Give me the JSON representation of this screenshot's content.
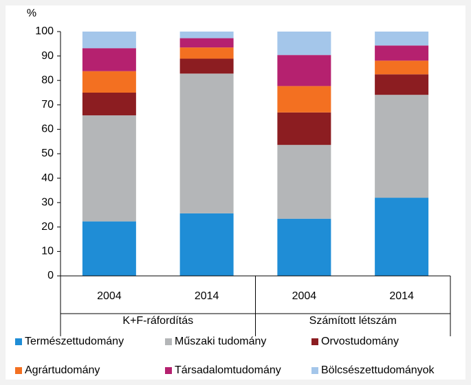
{
  "chart_data": {
    "type": "stacked_bar",
    "y_unit": "%",
    "categories": [
      "2004",
      "2014",
      "2004",
      "2014"
    ],
    "groups": [
      "K+F-ráfordítás",
      "Számított létszám"
    ],
    "series": [
      {
        "name": "Természettudomány",
        "color": "#1f8dd6",
        "values": [
          22.3,
          25.6,
          23.4,
          32
        ]
      },
      {
        "name": "Műszaki tudomány",
        "color": "#b4b6b8",
        "values": [
          43.4,
          57.2,
          30.2,
          42.1
        ]
      },
      {
        "name": "Orvostudomány",
        "color": "#8c1d21",
        "values": [
          9.3,
          6.1,
          13.3,
          8.4
        ]
      },
      {
        "name": "Agrártudomány",
        "color": "#f37021",
        "values": [
          8.8,
          4.6,
          10.8,
          5.6
        ]
      },
      {
        "name": "Társadalomtudomány",
        "color": "#b5216f",
        "values": [
          9.4,
          3.8,
          12.7,
          6.2
        ]
      },
      {
        "name": "Bölcsészettudományok",
        "color": "#a4c6ea",
        "values": [
          6.8,
          2.7,
          9.6,
          5.7
        ]
      }
    ],
    "ylim": [
      0,
      100
    ],
    "yticks": [
      0,
      10,
      20,
      30,
      40,
      50,
      60,
      70,
      80,
      90,
      100
    ],
    "grid": false
  }
}
